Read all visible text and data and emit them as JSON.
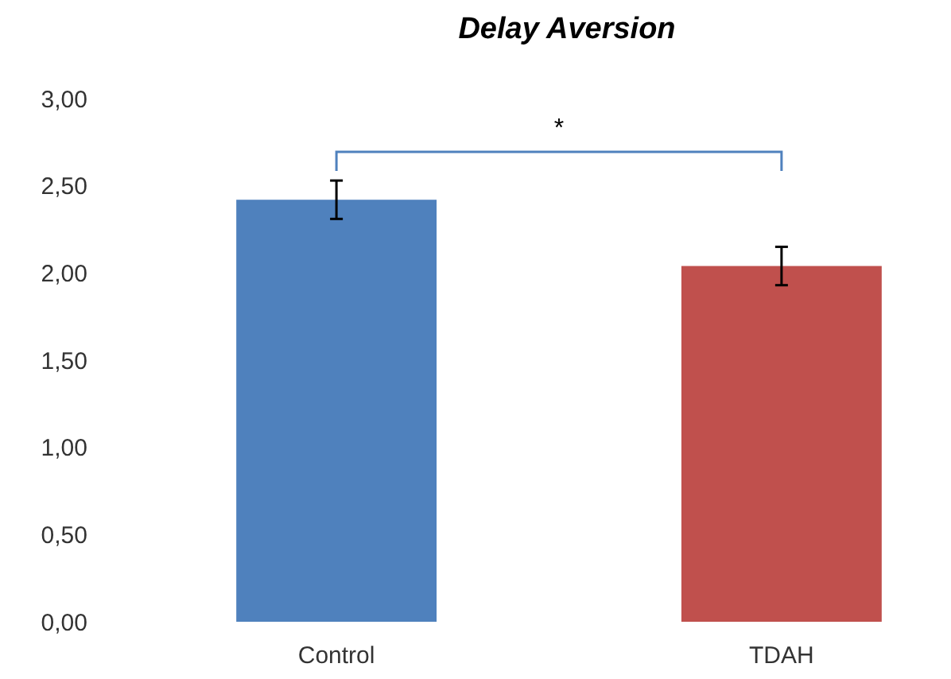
{
  "chart_data": {
    "type": "bar",
    "title": "Delay Aversion",
    "categories": [
      "Control",
      "TDAH"
    ],
    "values": [
      2.42,
      2.04
    ],
    "colors": [
      "#4f81bd",
      "#c0504d"
    ],
    "errors": [
      0.11,
      0.11
    ],
    "ylim": [
      0,
      3
    ],
    "yticks": [
      {
        "value": 0,
        "label": "0,00"
      },
      {
        "value": 0.5,
        "label": "0,50"
      },
      {
        "value": 1,
        "label": "1,00"
      },
      {
        "value": 1.5,
        "label": "1,50"
      },
      {
        "value": 2,
        "label": "2,00"
      },
      {
        "value": 2.5,
        "label": "2,50"
      },
      {
        "value": 3,
        "label": "3,00"
      }
    ],
    "annotations": [
      "*"
    ],
    "grid": false
  }
}
